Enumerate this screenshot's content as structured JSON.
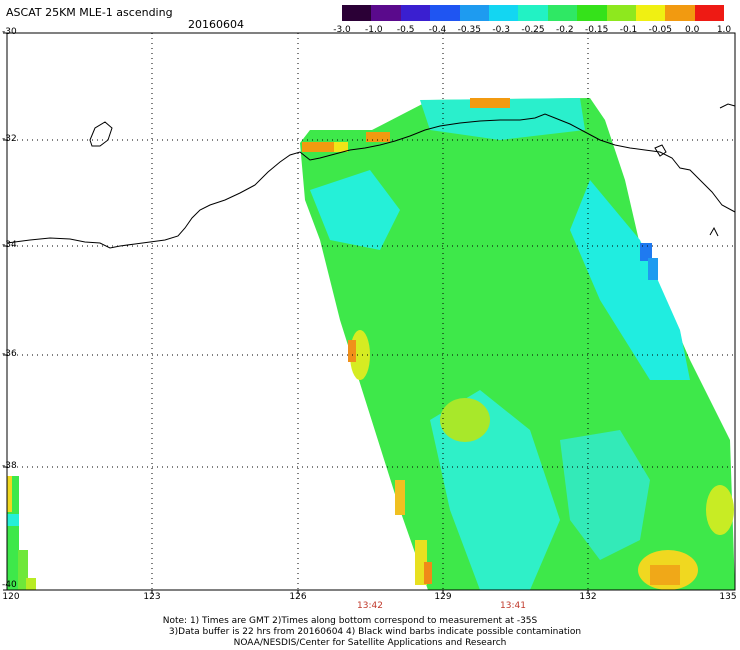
{
  "header": {
    "title": "ASCAT 25KM MLE-1 ascending",
    "date": "20160604"
  },
  "colorbar": {
    "ticks": [
      "-3.0",
      "-1.0",
      "-0.5",
      "-0.4",
      "-0.35",
      "-0.3",
      "-0.25",
      "-0.2",
      "-0.15",
      "-0.1",
      "-0.05",
      "0.0",
      "1.0"
    ],
    "colors": [
      "#2b0036",
      "#5a0a8c",
      "#3a1fd0",
      "#1f55f2",
      "#1e9bf0",
      "#13d6f2",
      "#22f2c4",
      "#2fe864",
      "#35e21a",
      "#8ee81e",
      "#f0f012",
      "#f29a10",
      "#ee1a14"
    ]
  },
  "axes": {
    "lat_labels": [
      "-30",
      "-32",
      "-34",
      "-36",
      "-38",
      "-40"
    ],
    "lon_labels": [
      "120",
      "123",
      "126",
      "129",
      "132",
      "135"
    ]
  },
  "times": [
    "13:42",
    "13:41"
  ],
  "notes": {
    "line1": "Note: 1) Times are GMT 2)Times along bottom correspond to measurement at -35S",
    "line2": "3)Data buffer is 22 hrs from 20160604 4) Black wind barbs indicate possible contamination",
    "line3": "NOAA/NESDIS/Center for Satellite Applications and Research"
  }
}
